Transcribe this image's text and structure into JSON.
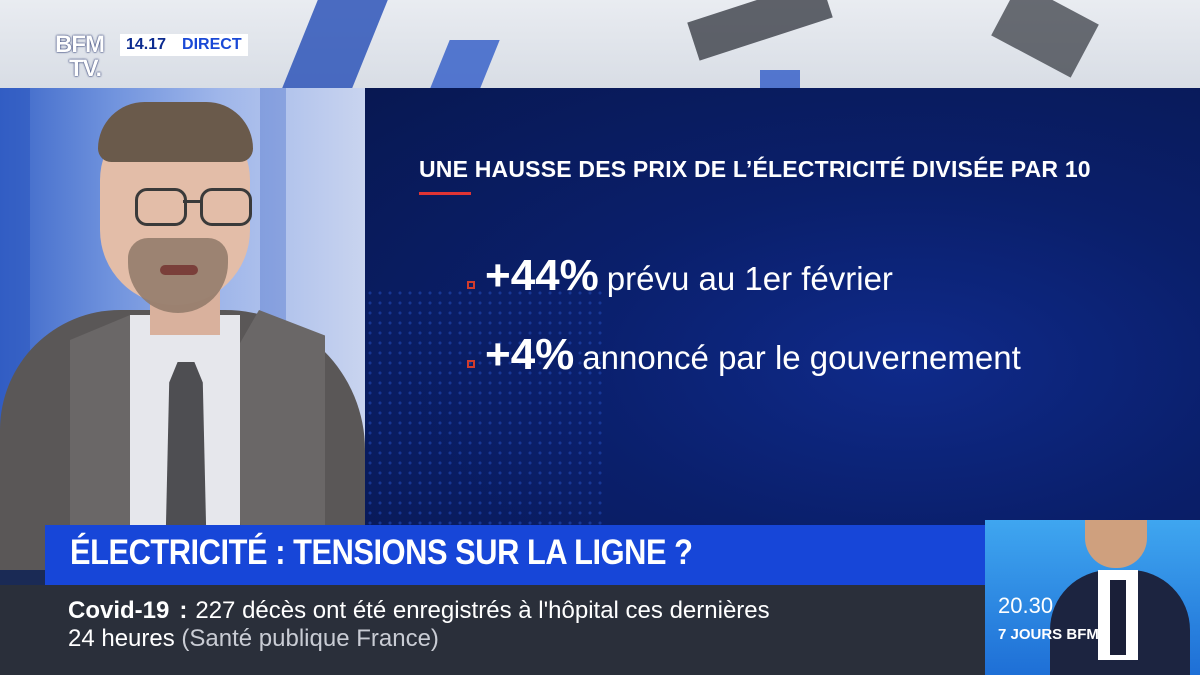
{
  "channel": {
    "logo_line1": "BFM",
    "logo_line2": "TV.",
    "time": "14.17",
    "live_label": "DIRECT"
  },
  "infographic": {
    "title": "UNE HAUSSE DES PRIX DE L’ÉLECTRICITÉ DIVISÉE PAR 10",
    "items": [
      {
        "value": "+44%",
        "text": "prévu au 1er février"
      },
      {
        "value": "+4%",
        "text": "annoncé par le gouvernement"
      }
    ]
  },
  "headline": "ÉLECTRICITÉ : TENSIONS SUR LA LIGNE ?",
  "ticker": {
    "tag": "Covid-19",
    "separator": ":",
    "text_line1": "227 décès ont été enregistrés à l'hôpital ces dernières",
    "text_line2": "24 heures",
    "source": "(Santé publique France)"
  },
  "promo": {
    "time": "20.30",
    "show": "7 JOURS BFM"
  },
  "colors": {
    "brand_blue": "#1746d8",
    "panel_navy": "#0a1f6b",
    "accent_red": "#e03434",
    "ticker_bg": "#2a2f3a"
  }
}
